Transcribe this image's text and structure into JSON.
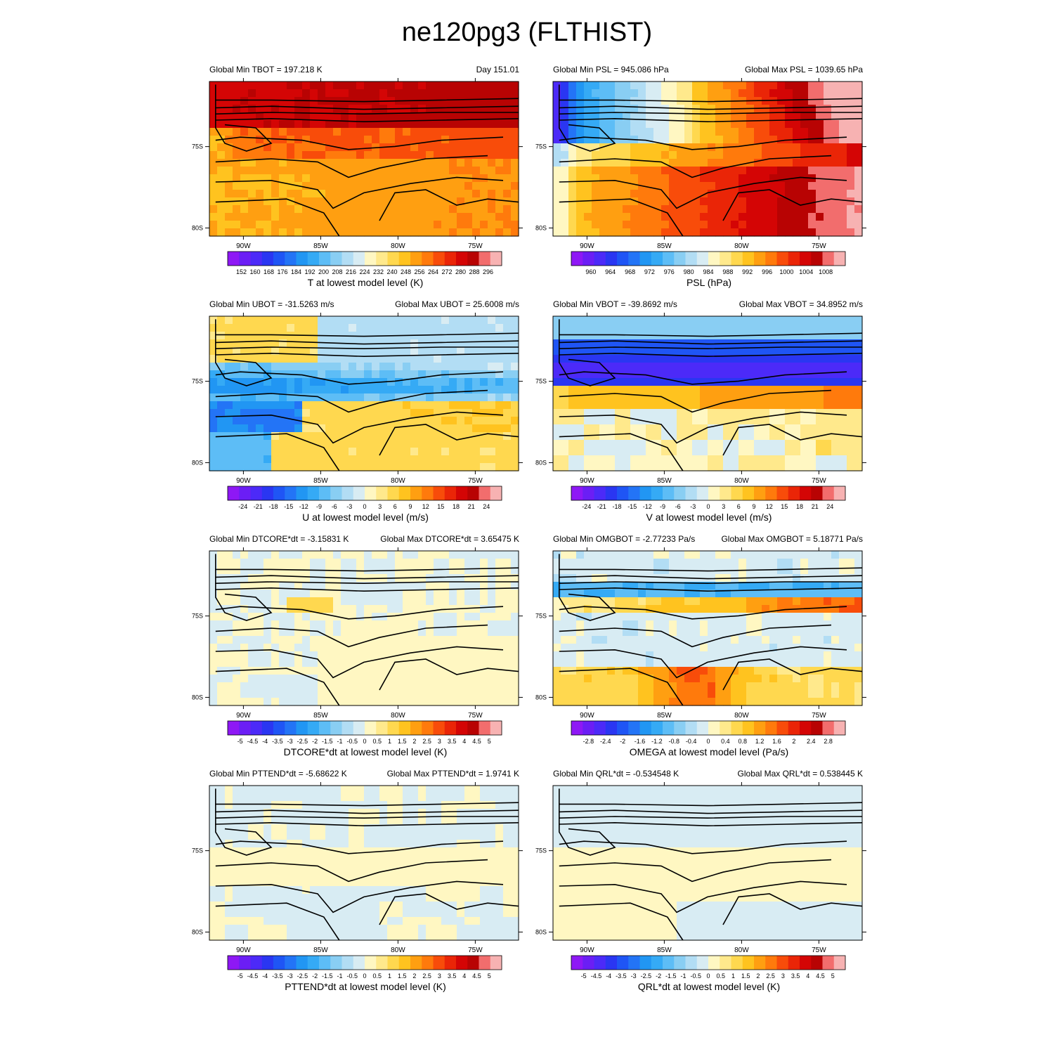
{
  "figure": {
    "title": "ne120pg3 (FLTHIST)"
  },
  "chart_data": [
    {
      "type": "heatmap",
      "variable": "TBOT",
      "left_header": "Global Min TBOT = 197.218 K",
      "right_header": "Day 151.01",
      "colorbar_label": "T at lowest model level (K)",
      "colorbar_ticks": [
        "152",
        "160",
        "168",
        "176",
        "184",
        "192",
        "200",
        "208",
        "216",
        "224",
        "232",
        "240",
        "248",
        "256",
        "264",
        "272",
        "280",
        "288",
        "296"
      ],
      "field": "tbot",
      "x_tick_labels": [
        "90W",
        "85W",
        "80W",
        "75W"
      ],
      "x_ticks": [
        -90,
        -85,
        -80,
        -75
      ],
      "y_tick_labels": [
        "75S",
        "80S"
      ],
      "y_ticks": [
        -75,
        -80
      ],
      "xlim": [
        -92.2,
        -72.2
      ],
      "ylim": [
        -80.5,
        -71.0
      ]
    },
    {
      "type": "heatmap",
      "variable": "PSL",
      "left_header": "Global Min PSL = 945.086 hPa",
      "right_header": "Global Max PSL = 1039.65 hPa",
      "colorbar_label": "PSL (hPa)",
      "colorbar_ticks": [
        "960",
        "964",
        "968",
        "972",
        "976",
        "980",
        "984",
        "988",
        "992",
        "996",
        "1000",
        "1004",
        "1008"
      ],
      "field": "psl",
      "x_tick_labels": [
        "90W",
        "85W",
        "80W",
        "75W"
      ],
      "x_ticks": [
        -90,
        -85,
        -80,
        -75
      ],
      "y_tick_labels": [
        "75S",
        "80S"
      ],
      "y_ticks": [
        -75,
        -80
      ],
      "xlim": [
        -92.2,
        -72.2
      ],
      "ylim": [
        -80.5,
        -71.0
      ]
    },
    {
      "type": "heatmap",
      "variable": "UBOT",
      "left_header": "Global Min UBOT = -31.5263 m/s",
      "right_header": "Global Max UBOT = 25.6008 m/s",
      "colorbar_label": "U at lowest model level (m/s)",
      "colorbar_ticks": [
        "-24",
        "-21",
        "-18",
        "-15",
        "-12",
        "-9",
        "-6",
        "-3",
        "0",
        "3",
        "6",
        "9",
        "12",
        "15",
        "18",
        "21",
        "24"
      ],
      "field": "ubot",
      "x_tick_labels": [
        "90W",
        "85W",
        "80W",
        "75W"
      ],
      "x_ticks": [
        -90,
        -85,
        -80,
        -75
      ],
      "y_tick_labels": [
        "75S",
        "80S"
      ],
      "y_ticks": [
        -75,
        -80
      ],
      "xlim": [
        -92.2,
        -72.2
      ],
      "ylim": [
        -80.5,
        -71.0
      ]
    },
    {
      "type": "heatmap",
      "variable": "VBOT",
      "left_header": "Global Min VBOT = -39.8692 m/s",
      "right_header": "Global Max VBOT = 34.8952 m/s",
      "colorbar_label": "V at lowest model level (m/s)",
      "colorbar_ticks": [
        "-24",
        "-21",
        "-18",
        "-15",
        "-12",
        "-9",
        "-6",
        "-3",
        "0",
        "3",
        "6",
        "9",
        "12",
        "15",
        "18",
        "21",
        "24"
      ],
      "field": "vbot",
      "x_tick_labels": [
        "90W",
        "85W",
        "80W",
        "75W"
      ],
      "x_ticks": [
        -90,
        -85,
        -80,
        -75
      ],
      "y_tick_labels": [
        "75S",
        "80S"
      ],
      "y_ticks": [
        -75,
        -80
      ],
      "xlim": [
        -92.2,
        -72.2
      ],
      "ylim": [
        -80.5,
        -71.0
      ]
    },
    {
      "type": "heatmap",
      "variable": "DTCORE*dt",
      "left_header": "Global Min DTCORE*dt = -3.15831 K",
      "right_header": "Global Max DTCORE*dt = 3.65475 K",
      "colorbar_label": "DTCORE*dt at lowest model level (K)",
      "colorbar_ticks": [
        "-5",
        "-4.5",
        "-4",
        "-3.5",
        "-3",
        "-2.5",
        "-2",
        "-1.5",
        "-1",
        "-0.5",
        "0",
        "0.5",
        "1",
        "1.5",
        "2",
        "2.5",
        "3",
        "3.5",
        "4",
        "4.5",
        "5"
      ],
      "field": "dtcore",
      "x_tick_labels": [
        "90W",
        "85W",
        "80W",
        "75W"
      ],
      "x_ticks": [
        -90,
        -85,
        -80,
        -75
      ],
      "y_tick_labels": [
        "75S",
        "80S"
      ],
      "y_ticks": [
        -75,
        -80
      ],
      "xlim": [
        -92.2,
        -72.2
      ],
      "ylim": [
        -80.5,
        -71.0
      ]
    },
    {
      "type": "heatmap",
      "variable": "OMGBOT",
      "left_header": "Global Min OMGBOT = -2.77233 Pa/s",
      "right_header": "Global Max OMGBOT = 5.18771 Pa/s",
      "colorbar_label": "OMEGA at lowest model level (Pa/s)",
      "colorbar_ticks": [
        "-2.8",
        "-2.4",
        "-2",
        "-1.6",
        "-1.2",
        "-0.8",
        "-0.4",
        "0",
        "0.4",
        "0.8",
        "1.2",
        "1.6",
        "2",
        "2.4",
        "2.8"
      ],
      "field": "omega",
      "x_tick_labels": [
        "90W",
        "85W",
        "80W",
        "75W"
      ],
      "x_ticks": [
        -90,
        -85,
        -80,
        -75
      ],
      "y_tick_labels": [
        "75S",
        "80S"
      ],
      "y_ticks": [
        -75,
        -80
      ],
      "xlim": [
        -92.2,
        -72.2
      ],
      "ylim": [
        -80.5,
        -71.0
      ]
    },
    {
      "type": "heatmap",
      "variable": "PTTEND*dt",
      "left_header": "Global Min PTTEND*dt = -5.68622 K",
      "right_header": "Global Max PTTEND*dt = 1.9741 K",
      "colorbar_label": "PTTEND*dt at lowest model level (K)",
      "colorbar_ticks": [
        "-5",
        "-4.5",
        "-4",
        "-3.5",
        "-3",
        "-2.5",
        "-2",
        "-1.5",
        "-1",
        "-0.5",
        "0",
        "0.5",
        "1",
        "1.5",
        "2",
        "2.5",
        "3",
        "3.5",
        "4",
        "4.5",
        "5"
      ],
      "field": "pttend",
      "x_tick_labels": [
        "90W",
        "85W",
        "80W",
        "75W"
      ],
      "x_ticks": [
        -90,
        -85,
        -80,
        -75
      ],
      "y_tick_labels": [
        "75S",
        "80S"
      ],
      "y_ticks": [
        -75,
        -80
      ],
      "xlim": [
        -92.2,
        -72.2
      ],
      "ylim": [
        -80.5,
        -71.0
      ]
    },
    {
      "type": "heatmap",
      "variable": "QRL*dt",
      "left_header": "Global Min QRL*dt = -0.534548 K",
      "right_header": "Global Max QRL*dt = 0.538445 K",
      "colorbar_label": "QRL*dt at lowest model level (K)",
      "colorbar_ticks": [
        "-5",
        "-4.5",
        "-4",
        "-3.5",
        "-3",
        "-2.5",
        "-2",
        "-1.5",
        "-1",
        "-0.5",
        "0",
        "0.5",
        "1",
        "1.5",
        "2",
        "2.5",
        "3",
        "3.5",
        "4",
        "4.5",
        "5"
      ],
      "field": "qrl",
      "x_tick_labels": [
        "90W",
        "85W",
        "80W",
        "75W"
      ],
      "x_ticks": [
        -90,
        -85,
        -80,
        -75
      ],
      "y_tick_labels": [
        "75S",
        "80S"
      ],
      "y_ticks": [
        -75,
        -80
      ],
      "xlim": [
        -92.2,
        -72.2
      ],
      "ylim": [
        -80.5,
        -71.0
      ]
    }
  ],
  "colormap": [
    "#8e18f5",
    "#6b1ef5",
    "#4c2af8",
    "#2a36f2",
    "#1f55f5",
    "#2374f6",
    "#2196f3",
    "#35aaf5",
    "#5dbdf6",
    "#89cef3",
    "#b2ddf4",
    "#d8ecf3",
    "#fff7c2",
    "#ffe98c",
    "#ffd84f",
    "#ffc31f",
    "#ff9f11",
    "#ff7a0c",
    "#f84c0a",
    "#ea2507",
    "#d40505",
    "#b80303",
    "#f26d6d",
    "#f7b2b2"
  ],
  "contour_color": "#000000"
}
